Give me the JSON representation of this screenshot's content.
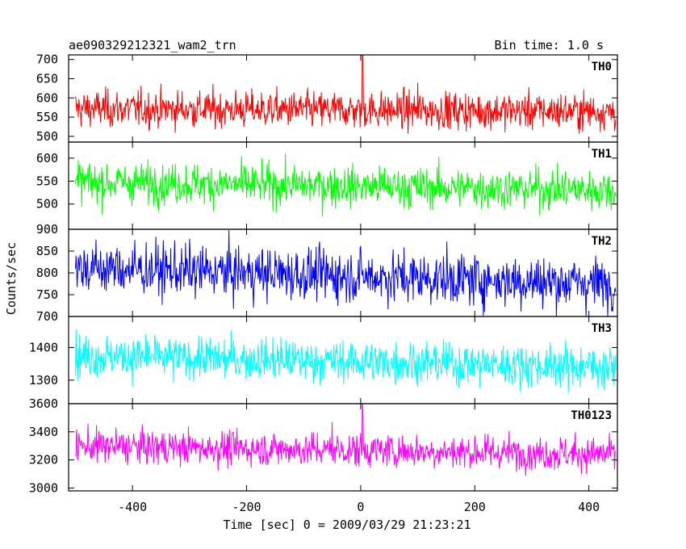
{
  "chart_data": {
    "type": "line",
    "title_left": "ae090329212321_wam2_trn",
    "title_right": "Bin time: 1.0 s",
    "ylabel": "Counts/sec",
    "xlabel": "Time [sec] 0 = 2009/03/29 21:23:21",
    "xlim": [
      -512,
      450
    ],
    "x_ticks": [
      -400,
      -200,
      0,
      200,
      400
    ],
    "x_data_range": [
      -500,
      447
    ],
    "bin_time": 1.0,
    "grid": false,
    "panels": [
      {
        "name": "TH0",
        "color": "#ff0000",
        "ylim": [
          485,
          712
        ],
        "y_ticks": [
          500,
          550,
          600,
          650,
          700
        ],
        "mean": 572,
        "noise": 24,
        "trend": [
          [
            -500,
            572
          ],
          [
            447,
            565
          ]
        ],
        "spikes": [
          [
            3,
            745
          ],
          [
            4,
            700
          ],
          [
            100,
            640
          ]
        ]
      },
      {
        "name": "TH1",
        "color": "#00ff00",
        "ylim": [
          445,
          635
        ],
        "y_ticks": [
          500,
          550,
          600
        ],
        "mean": 542,
        "noise": 22,
        "trend": [
          [
            -500,
            548
          ],
          [
            447,
            530
          ]
        ],
        "spikes": []
      },
      {
        "name": "TH2",
        "color": "#0000ff",
        "ylim": [
          700,
          900
        ],
        "y_ticks": [
          700,
          750,
          800,
          850,
          900
        ],
        "mean": 800,
        "noise": 30,
        "trend": [
          [
            -500,
            812
          ],
          [
            447,
            775
          ]
        ],
        "spikes": []
      },
      {
        "name": "TH3",
        "color": "#00ffff",
        "ylim": [
          1228,
          1495
        ],
        "y_ticks": [
          1300,
          1400
        ],
        "mean": 1360,
        "noise": 32,
        "trend": [
          [
            -500,
            1375
          ],
          [
            447,
            1340
          ]
        ],
        "spikes": []
      },
      {
        "name": "TH0123",
        "color": "#ff00ff",
        "ylim": [
          2980,
          3600
        ],
        "y_ticks": [
          3000,
          3200,
          3400,
          3600
        ],
        "mean": 3295,
        "noise": 60,
        "trend": [
          [
            -500,
            3300
          ],
          [
            447,
            3240
          ]
        ],
        "spikes": [
          [
            3,
            3650
          ],
          [
            4,
            3520
          ],
          [
            -50,
            3470
          ]
        ]
      }
    ]
  }
}
